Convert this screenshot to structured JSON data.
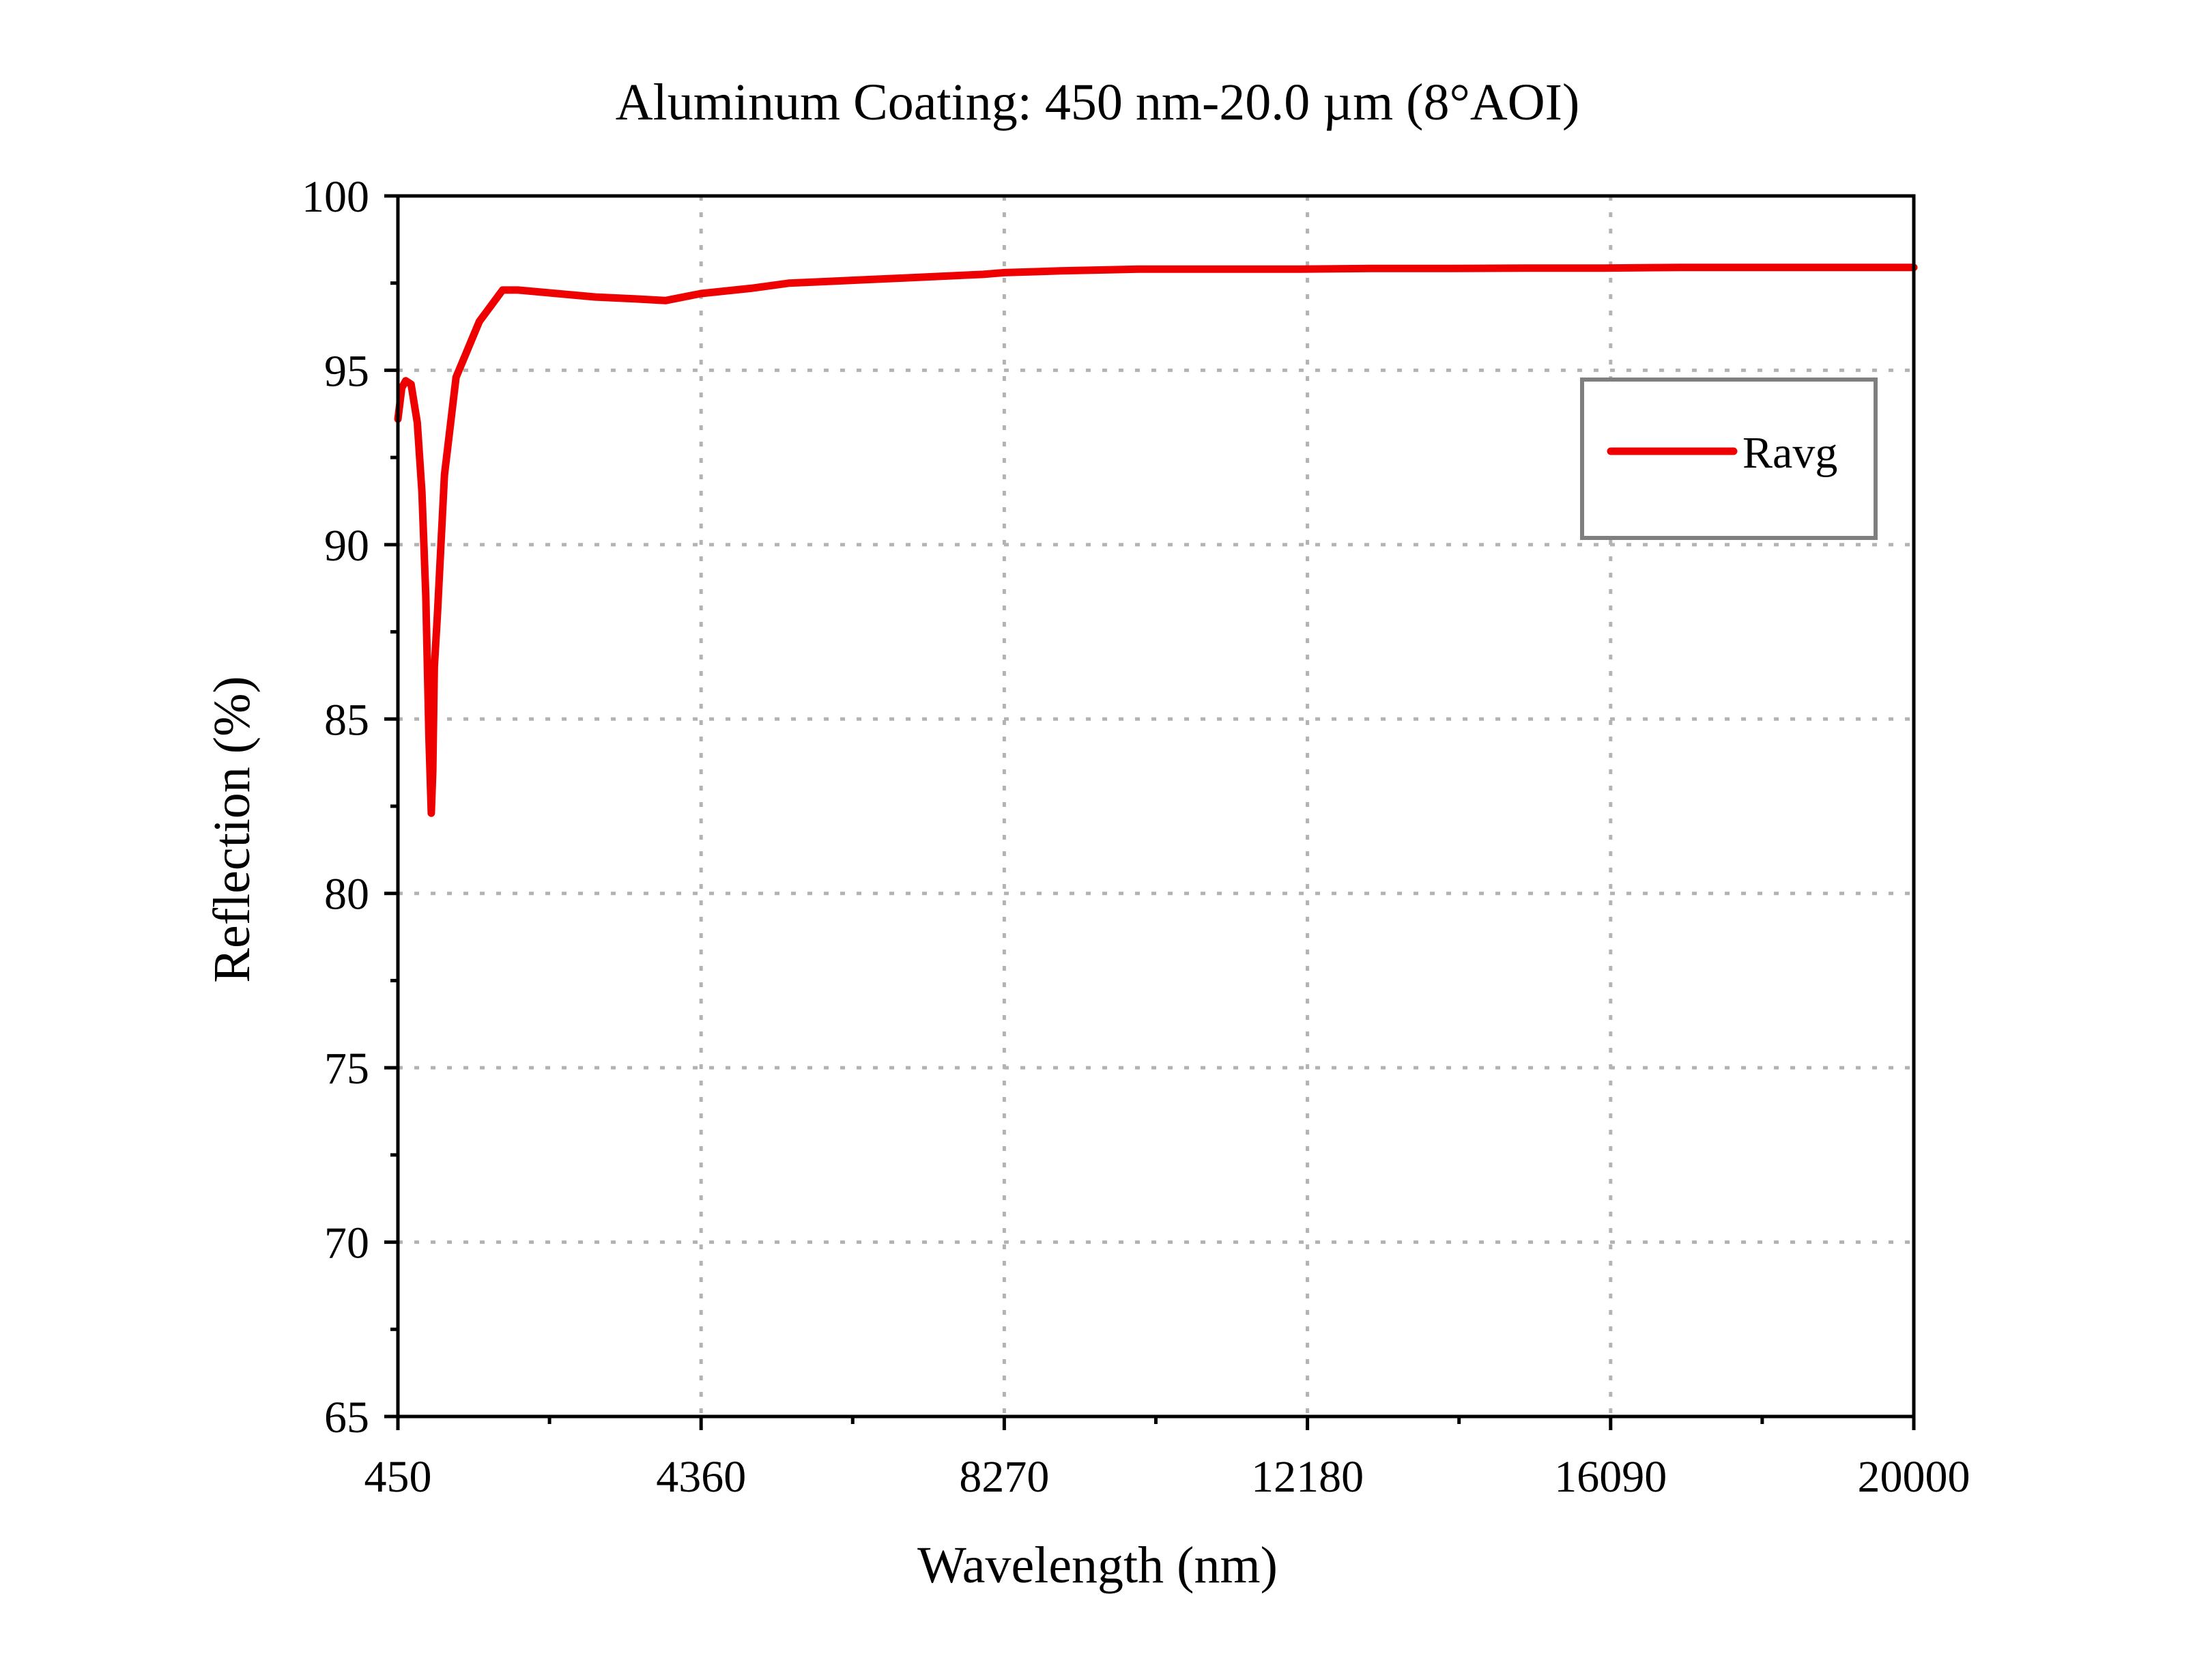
{
  "chart_data": {
    "type": "line",
    "title": "Aluminum Coating: 450 nm-20.0 µm (8°AOI)",
    "xlabel": "Wavelength (nm)",
    "ylabel": "Reflection (%)",
    "xlim": [
      450,
      20000
    ],
    "ylim": [
      65,
      100
    ],
    "x_ticks": [
      450,
      4360,
      8270,
      12180,
      16090,
      20000
    ],
    "x_tick_labels": [
      "450",
      "4360",
      "8270",
      "12180",
      "16090",
      "20000"
    ],
    "x_minor_ticks": [
      2405,
      6315,
      10225,
      14135,
      18045
    ],
    "y_ticks": [
      65,
      70,
      75,
      80,
      85,
      90,
      95,
      100
    ],
    "y_tick_labels": [
      "65",
      "70",
      "75",
      "80",
      "85",
      "90",
      "95",
      "100"
    ],
    "y_minor_ticks": [
      67.5,
      72.5,
      77.5,
      82.5,
      87.5,
      92.5,
      97.5
    ],
    "grid": true,
    "legend_position": "top-right",
    "colors": {
      "series": "#ee0000",
      "legend_border": "#7f7f7f"
    },
    "series": [
      {
        "name": "Ravg",
        "x": [
          450,
          500,
          550,
          620,
          700,
          760,
          810,
          850,
          880,
          900,
          920,
          960,
          1050,
          1200,
          1500,
          1800,
          2000,
          2500,
          3000,
          3500,
          3900,
          4360,
          5000,
          5500,
          6000,
          6500,
          7000,
          7500,
          8000,
          8270,
          9000,
          10000,
          10500,
          11000,
          12000,
          13000,
          14000,
          15000,
          16000,
          17000,
          18000,
          19000,
          20000
        ],
        "y": [
          93.6,
          94.5,
          94.7,
          94.6,
          93.5,
          91.5,
          88.5,
          84.5,
          82.3,
          83.5,
          86.5,
          88.0,
          92.0,
          94.8,
          96.4,
          97.3,
          97.3,
          97.2,
          97.1,
          97.05,
          97.0,
          97.2,
          97.35,
          97.5,
          97.55,
          97.6,
          97.65,
          97.7,
          97.75,
          97.8,
          97.85,
          97.9,
          97.9,
          97.9,
          97.9,
          97.92,
          97.92,
          97.93,
          97.93,
          97.95,
          97.95,
          97.95,
          97.95
        ]
      }
    ]
  }
}
